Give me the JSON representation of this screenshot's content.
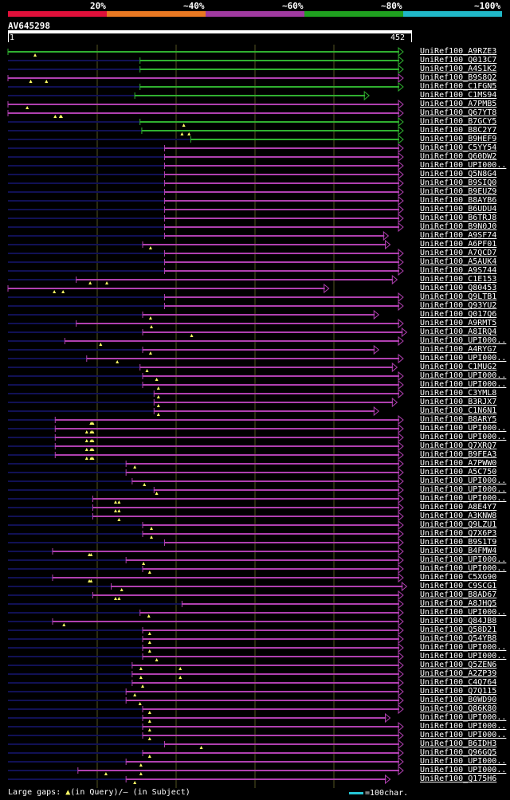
{
  "legend": [
    {
      "label": "20%",
      "color": "#e0103a"
    },
    {
      "label": "~40%",
      "color": "#e87822"
    },
    {
      "label": "~60%",
      "color": "#a03aa0"
    },
    {
      "label": "~80%",
      "color": "#1fa01f"
    },
    {
      "label": "~100%",
      "color": "#20b8c8"
    }
  ],
  "query": {
    "name": "AV645298",
    "start": "1",
    "end": "452",
    "length": 452
  },
  "colors": {
    "green": "#30b030",
    "magenta": "#b040b0",
    "dark": "#111155",
    "gap": "#ffff66",
    "grid": "#555522"
  },
  "hits": [
    {
      "id": "UniRef100_A9RZE3",
      "s": 1,
      "e": 452,
      "c": "green",
      "o": 1,
      "gaps": [
        32
      ]
    },
    {
      "id": "UniRef100_Q013C7",
      "s": 152,
      "e": 452,
      "c": "green",
      "o": 152,
      "gaps": []
    },
    {
      "id": "UniRef100_A4S1K2",
      "s": 152,
      "e": 452,
      "c": "green",
      "o": 152,
      "gaps": []
    },
    {
      "id": "UniRef100_B9S8Q2",
      "s": 1,
      "e": 452,
      "c": "magenta",
      "o": 1,
      "gaps": [
        27,
        45
      ]
    },
    {
      "id": "UniRef100_C1FGN5",
      "s": 152,
      "e": 452,
      "c": "green",
      "o": 152,
      "gaps": []
    },
    {
      "id": "UniRef100_C1MS94",
      "s": 146,
      "e": 413,
      "c": "green",
      "o": 146,
      "gaps": []
    },
    {
      "id": "UniRef100_A7PMB5",
      "s": 1,
      "e": 452,
      "c": "magenta",
      "o": 1,
      "gaps": [
        23
      ]
    },
    {
      "id": "UniRef100_Q67YT8",
      "s": 1,
      "e": 452,
      "c": "magenta",
      "o": 1,
      "gaps": [
        55,
        61,
        62
      ]
    },
    {
      "id": "UniRef100_B7GCY5",
      "s": 152,
      "e": 452,
      "c": "green",
      "o": 152,
      "gaps": [
        202
      ]
    },
    {
      "id": "UniRef100_B8C2Y7",
      "s": 154,
      "e": 452,
      "c": "green",
      "o": 154,
      "gaps": [
        200,
        208
      ]
    },
    {
      "id": "UniRef100_B9HEF9",
      "s": 210,
      "e": 452,
      "c": "green",
      "o": 210,
      "gaps": []
    },
    {
      "id": "UniRef100_C5YY54",
      "s": 180,
      "e": 452,
      "c": "magenta",
      "o": 1,
      "gaps": []
    },
    {
      "id": "UniRef100_Q60DW2",
      "s": 180,
      "e": 452,
      "c": "magenta",
      "o": 1,
      "gaps": []
    },
    {
      "id": "UniRef100_UPI000..",
      "s": 180,
      "e": 452,
      "c": "magenta",
      "o": 1,
      "gaps": []
    },
    {
      "id": "UniRef100_Q5N8G4",
      "s": 180,
      "e": 452,
      "c": "magenta",
      "o": 1,
      "gaps": []
    },
    {
      "id": "UniRef100_B9SIQ0",
      "s": 180,
      "e": 452,
      "c": "magenta",
      "o": 1,
      "gaps": []
    },
    {
      "id": "UniRef100_B9EUZ9",
      "s": 180,
      "e": 452,
      "c": "magenta",
      "o": 1,
      "gaps": []
    },
    {
      "id": "UniRef100_B8AYB6",
      "s": 180,
      "e": 452,
      "c": "magenta",
      "o": 1,
      "gaps": []
    },
    {
      "id": "UniRef100_B6UDU4",
      "s": 180,
      "e": 452,
      "c": "magenta",
      "o": 1,
      "gaps": []
    },
    {
      "id": "UniRef100_B6TRJ8",
      "s": 180,
      "e": 452,
      "c": "magenta",
      "o": 1,
      "gaps": []
    },
    {
      "id": "UniRef100_B9N0J0",
      "s": 180,
      "e": 452,
      "c": "magenta",
      "o": 1,
      "gaps": []
    },
    {
      "id": "UniRef100_A9SF74",
      "s": 180,
      "e": 435,
      "c": "magenta",
      "o": 1,
      "gaps": []
    },
    {
      "id": "UniRef100_A6PF01",
      "s": 155,
      "e": 437,
      "c": "magenta",
      "o": 1,
      "gaps": [
        164
      ]
    },
    {
      "id": "UniRef100_A7QCD7",
      "s": 180,
      "e": 452,
      "c": "magenta",
      "o": 1,
      "gaps": []
    },
    {
      "id": "UniRef100_A5AUK4",
      "s": 180,
      "e": 452,
      "c": "magenta",
      "o": 1,
      "gaps": []
    },
    {
      "id": "UniRef100_A9S744",
      "s": 180,
      "e": 452,
      "c": "magenta",
      "o": 1,
      "gaps": []
    },
    {
      "id": "UniRef100_C1E153",
      "s": 79,
      "e": 445,
      "c": "magenta",
      "o": 1,
      "gaps": [
        95,
        114
      ]
    },
    {
      "id": "UniRef100_Q80453",
      "s": 1,
      "e": 367,
      "c": "magenta",
      "o": 1,
      "gaps": [
        54,
        64
      ]
    },
    {
      "id": "UniRef100_Q9LTB1",
      "s": 180,
      "e": 452,
      "c": "magenta",
      "o": 1,
      "gaps": []
    },
    {
      "id": "UniRef100_Q93YU2",
      "s": 180,
      "e": 452,
      "c": "magenta",
      "o": 1,
      "gaps": []
    },
    {
      "id": "UniRef100_Q017Q6",
      "s": 155,
      "e": 424,
      "c": "magenta",
      "o": 1,
      "gaps": [
        164
      ]
    },
    {
      "id": "UniRef100_A9RMT5",
      "s": 79,
      "e": 452,
      "c": "magenta",
      "o": 1,
      "gaps": [
        165
      ]
    },
    {
      "id": "UniRef100_A8IRQ4",
      "s": 155,
      "e": 457,
      "c": "magenta",
      "o": 1,
      "gaps": [
        211
      ]
    },
    {
      "id": "UniRef100_UPI000..",
      "s": 66,
      "e": 452,
      "c": "magenta",
      "o": 1,
      "gaps": [
        107
      ]
    },
    {
      "id": "UniRef100_A4RYG7",
      "s": 155,
      "e": 424,
      "c": "magenta",
      "o": 1,
      "gaps": [
        164
      ]
    },
    {
      "id": "UniRef100_UPI000..",
      "s": 91,
      "e": 452,
      "c": "magenta",
      "o": 1,
      "gaps": [
        126
      ]
    },
    {
      "id": "UniRef100_C1MUG2",
      "s": 152,
      "e": 445,
      "c": "magenta",
      "o": 1,
      "gaps": [
        160
      ]
    },
    {
      "id": "UniRef100_UPI000..",
      "s": 155,
      "e": 452,
      "c": "magenta",
      "o": 1,
      "gaps": [
        171
      ]
    },
    {
      "id": "UniRef100_UPI000..",
      "s": 155,
      "e": 452,
      "c": "magenta",
      "o": 1,
      "gaps": [
        173
      ]
    },
    {
      "id": "UniRef100_C3YML8",
      "s": 168,
      "e": 452,
      "c": "magenta",
      "o": 1,
      "gaps": [
        173
      ]
    },
    {
      "id": "UniRef100_B3RJX7",
      "s": 168,
      "e": 445,
      "c": "magenta",
      "o": 1,
      "gaps": [
        173
      ]
    },
    {
      "id": "UniRef100_C1N6N1",
      "s": 168,
      "e": 424,
      "c": "magenta",
      "o": 1,
      "gaps": [
        173
      ]
    },
    {
      "id": "UniRef100_B8ARY5",
      "s": 55,
      "e": 452,
      "c": "magenta",
      "o": 1,
      "gaps": [
        96,
        98
      ]
    },
    {
      "id": "UniRef100_UPI000..",
      "s": 55,
      "e": 452,
      "c": "magenta",
      "o": 1,
      "gaps": [
        91,
        96,
        98
      ]
    },
    {
      "id": "UniRef100_UPI000..",
      "s": 55,
      "e": 452,
      "c": "magenta",
      "o": 1,
      "gaps": [
        91,
        96,
        98
      ]
    },
    {
      "id": "UniRef100_Q7XRQ7",
      "s": 55,
      "e": 452,
      "c": "magenta",
      "o": 1,
      "gaps": [
        91,
        96,
        98
      ]
    },
    {
      "id": "UniRef100_B9FEA3",
      "s": 55,
      "e": 452,
      "c": "magenta",
      "o": 1,
      "gaps": [
        91,
        96,
        98
      ]
    },
    {
      "id": "UniRef100_A7PWW0",
      "s": 136,
      "e": 452,
      "c": "magenta",
      "o": 1,
      "gaps": [
        146
      ]
    },
    {
      "id": "UniRef100_A5C750",
      "s": 136,
      "e": 452,
      "c": "magenta",
      "o": 1,
      "gaps": []
    },
    {
      "id": "UniRef100_UPI000..",
      "s": 143,
      "e": 452,
      "c": "magenta",
      "o": 1,
      "gaps": [
        157
      ]
    },
    {
      "id": "UniRef100_UPI000..",
      "s": 168,
      "e": 452,
      "c": "magenta",
      "o": 1,
      "gaps": [
        171
      ]
    },
    {
      "id": "UniRef100_UPI000..",
      "s": 98,
      "e": 452,
      "c": "magenta",
      "o": 1,
      "gaps": [
        124,
        128
      ]
    },
    {
      "id": "UniRef100_A8E4Y7",
      "s": 98,
      "e": 452,
      "c": "magenta",
      "o": 1,
      "gaps": [
        124,
        128
      ]
    },
    {
      "id": "UniRef100_A3KNW8",
      "s": 98,
      "e": 452,
      "c": "magenta",
      "o": 1,
      "gaps": [
        128
      ]
    },
    {
      "id": "UniRef100_Q9LZU1",
      "s": 155,
      "e": 452,
      "c": "magenta",
      "o": 1,
      "gaps": [
        165
      ]
    },
    {
      "id": "UniRef100_Q7X6P3",
      "s": 155,
      "e": 452,
      "c": "magenta",
      "o": 1,
      "gaps": [
        165
      ]
    },
    {
      "id": "UniRef100_B9S1T9",
      "s": 180,
      "e": 452,
      "c": "magenta",
      "o": 1,
      "gaps": []
    },
    {
      "id": "UniRef100_B4FMW4",
      "s": 52,
      "e": 452,
      "c": "magenta",
      "o": 1,
      "gaps": [
        94,
        96
      ]
    },
    {
      "id": "UniRef100_UPI000..",
      "s": 136,
      "e": 452,
      "c": "magenta",
      "o": 1,
      "gaps": [
        156
      ]
    },
    {
      "id": "UniRef100_UPI000..",
      "s": 155,
      "e": 452,
      "c": "magenta",
      "o": 1,
      "gaps": [
        163
      ]
    },
    {
      "id": "UniRef100_C5XG90",
      "s": 52,
      "e": 452,
      "c": "magenta",
      "o": 1,
      "gaps": [
        94,
        96
      ]
    },
    {
      "id": "UniRef100_C9SCG1",
      "s": 119,
      "e": 457,
      "c": "magenta",
      "o": 1,
      "gaps": [
        131
      ]
    },
    {
      "id": "UniRef100_B8AD67",
      "s": 98,
      "e": 452,
      "c": "magenta",
      "o": 1,
      "gaps": [
        124,
        128
      ]
    },
    {
      "id": "UniRef100_A8JHQ5",
      "s": 200,
      "e": 452,
      "c": "magenta",
      "o": 1,
      "gaps": []
    },
    {
      "id": "UniRef100_UPI000..",
      "s": 152,
      "e": 452,
      "c": "magenta",
      "o": 1,
      "gaps": [
        162
      ]
    },
    {
      "id": "UniRef100_Q84JB8",
      "s": 52,
      "e": 452,
      "c": "magenta",
      "o": 1,
      "gaps": [
        65
      ]
    },
    {
      "id": "UniRef100_Q58D21",
      "s": 155,
      "e": 452,
      "c": "magenta",
      "o": 1,
      "gaps": [
        163
      ]
    },
    {
      "id": "UniRef100_Q54YB8",
      "s": 155,
      "e": 452,
      "c": "magenta",
      "o": 1,
      "gaps": [
        163
      ]
    },
    {
      "id": "UniRef100_UPI000..",
      "s": 155,
      "e": 452,
      "c": "magenta",
      "o": 1,
      "gaps": [
        163
      ]
    },
    {
      "id": "UniRef100_UPI000..",
      "s": 155,
      "e": 452,
      "c": "magenta",
      "o": 1,
      "gaps": [
        171
      ]
    },
    {
      "id": "UniRef100_Q5ZEN6",
      "s": 143,
      "e": 452,
      "c": "magenta",
      "o": 1,
      "gaps": [
        153,
        198
      ]
    },
    {
      "id": "UniRef100_A2ZP39",
      "s": 143,
      "e": 452,
      "c": "magenta",
      "o": 1,
      "gaps": [
        153,
        198
      ]
    },
    {
      "id": "UniRef100_C4Q764",
      "s": 143,
      "e": 452,
      "c": "magenta",
      "o": 1,
      "gaps": [
        155
      ]
    },
    {
      "id": "UniRef100_Q7Q115",
      "s": 136,
      "e": 452,
      "c": "magenta",
      "o": 1,
      "gaps": [
        146
      ]
    },
    {
      "id": "UniRef100_B0WD90",
      "s": 136,
      "e": 452,
      "c": "magenta",
      "o": 1,
      "gaps": [
        152
      ]
    },
    {
      "id": "UniRef100_Q86K80",
      "s": 155,
      "e": 452,
      "c": "magenta",
      "o": 1,
      "gaps": [
        163
      ]
    },
    {
      "id": "UniRef100_UPI000..",
      "s": 155,
      "e": 437,
      "c": "magenta",
      "o": 1,
      "gaps": [
        163
      ]
    },
    {
      "id": "UniRef100_UPI000..",
      "s": 155,
      "e": 452,
      "c": "magenta",
      "o": 1,
      "gaps": [
        163
      ]
    },
    {
      "id": "UniRef100_UPI000..",
      "s": 155,
      "e": 452,
      "c": "magenta",
      "o": 1,
      "gaps": [
        163
      ]
    },
    {
      "id": "UniRef100_B6IDH3",
      "s": 180,
      "e": 452,
      "c": "magenta",
      "o": 1,
      "gaps": [
        222
      ]
    },
    {
      "id": "UniRef100_Q96GQ5",
      "s": 155,
      "e": 452,
      "c": "magenta",
      "o": 1,
      "gaps": [
        163
      ]
    },
    {
      "id": "UniRef100_UPI000..",
      "s": 136,
      "e": 452,
      "c": "magenta",
      "o": 1,
      "gaps": [
        153
      ]
    },
    {
      "id": "UniRef100_UPI000..",
      "s": 81,
      "e": 452,
      "c": "magenta",
      "o": 1,
      "gaps": [
        113,
        153
      ]
    },
    {
      "id": "UniRef100_Q175H6",
      "s": 136,
      "e": 437,
      "c": "magenta",
      "o": 1,
      "gaps": [
        146
      ]
    }
  ],
  "footer": {
    "prefix": "Large gaps: ",
    "tri": "▲",
    "text": "(in Query)/— (in Subject)"
  },
  "scale": {
    "label": "=100char."
  }
}
